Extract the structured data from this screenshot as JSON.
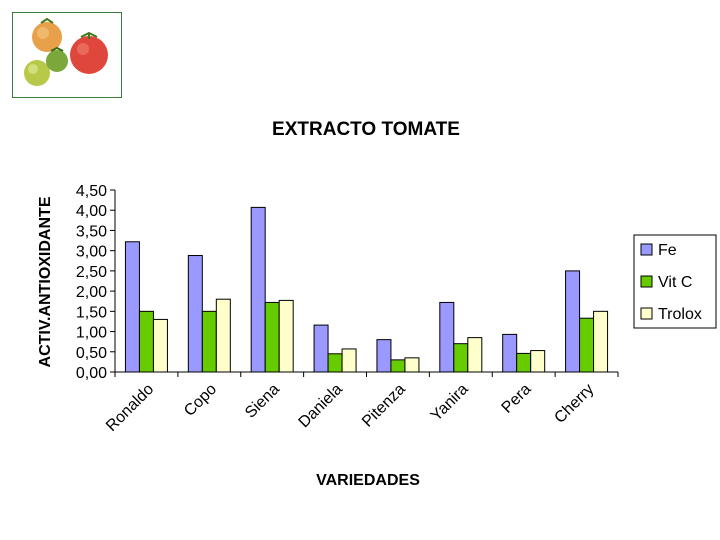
{
  "photo": {
    "icon": "tomatoes-photo"
  },
  "colors": {
    "Fe": "#9999ff",
    "Vit C": "#66cc00",
    "Trolox": "#ffffcc"
  },
  "chart_data": {
    "type": "bar",
    "title": "EXTRACTO TOMATE",
    "xlabel": "VARIEDADES",
    "ylabel": "ACTIV.ANTIOXIDANTE",
    "categories": [
      "Ronaldo",
      "Copo",
      "Siena",
      "Daniela",
      "Pitenza",
      "Yanira",
      "Pera",
      "Cherry"
    ],
    "series": [
      {
        "name": "Fe",
        "values": [
          3.22,
          2.88,
          4.07,
          1.16,
          0.8,
          1.72,
          0.93,
          2.5
        ]
      },
      {
        "name": "Vit C",
        "values": [
          1.5,
          1.5,
          1.72,
          0.45,
          0.3,
          0.7,
          0.46,
          1.33
        ]
      },
      {
        "name": "Trolox",
        "values": [
          1.3,
          1.8,
          1.77,
          0.57,
          0.35,
          0.85,
          0.53,
          1.5
        ]
      }
    ],
    "ylim": [
      0,
      4.5
    ],
    "yticks": [
      "0,00",
      "0,50",
      "1,00",
      "1,50",
      "2,00",
      "2,50",
      "3,00",
      "3,50",
      "4,00",
      "4,50"
    ],
    "legend_position": "right",
    "grid": false
  }
}
